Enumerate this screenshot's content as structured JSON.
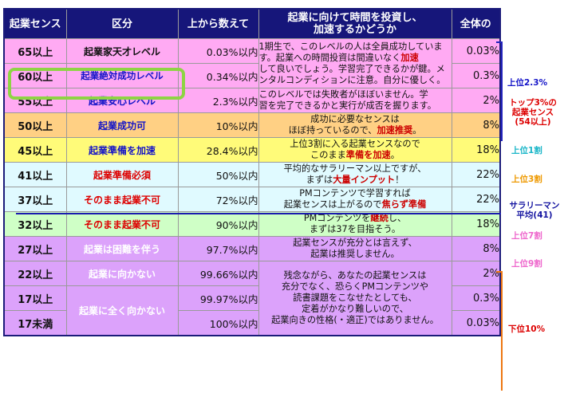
{
  "headers": {
    "score": "起業センス",
    "category": "区分",
    "count": "上から数えて",
    "desc_line1": "起業に向けて時間を投資し、",
    "desc_line2": "加速するかどうか",
    "whole": "全体の"
  },
  "rows": [
    {
      "score": "65以上",
      "category": "起業家天才レベル",
      "count": "0.03%以内",
      "whole": "0.03%"
    },
    {
      "score": "60以上",
      "category": "起業絶対成功レベル",
      "count": "0.34%以内",
      "whole": "0.3%"
    },
    {
      "score": "55以上",
      "category": "起業安心レベル",
      "count": "2.3%以内",
      "whole": "2%"
    },
    {
      "score": "50以上",
      "category": "起業成功可",
      "count": "10%以内",
      "whole": "8%"
    },
    {
      "score": "45以上",
      "category": "起業準備を加速",
      "count": "28.4%以内",
      "whole": "18%"
    },
    {
      "score": "41以上",
      "category": "起業準備必須",
      "count": "50%以内",
      "whole": "22%"
    },
    {
      "score": "37以上",
      "category": "そのまま起業不可",
      "count": "72%以内",
      "whole": "22%"
    },
    {
      "score": "32以上",
      "category": "そのまま起業不可",
      "count": "90%以内",
      "whole": "18%"
    },
    {
      "score": "27以上",
      "category": "起業は困難を伴う",
      "count": "97.7%以内",
      "whole": "8%"
    },
    {
      "score": "22以上",
      "category": "起業に向かない",
      "count": "99.66%以内",
      "whole": "2%"
    },
    {
      "score": "17以上",
      "category": "起業に全く向かない",
      "count": "99.97%以内",
      "whole": "0.3%"
    },
    {
      "score": "17未満",
      "category": "",
      "count": "100%以内",
      "whole": "0.03%"
    }
  ],
  "desc": {
    "top": {
      "l1": "1期生で、このレベルの人は全員成功していま",
      "l2a": "す。起業への時間投資は間違いなく",
      "l2b": "加速",
      "l3": "して良いでしょう。学習完了できるかが鍵。メ",
      "l4": "ンタルコンディションに注意。自分に優しく。"
    },
    "r55": {
      "l1": "このレベルでは失敗者がほぼいません。学",
      "l2": "習を完了できるかと実行が成否を握ります。"
    },
    "r50": {
      "l1": "成功に必要なセンスは",
      "l2a": "ほぼ持っているので、",
      "l2b": "加速推奨",
      "l2c": "。"
    },
    "r45": {
      "l1": "上位3割に入る起業センスなので",
      "l2a": "このまま",
      "l2b": "準備を加速",
      "l2c": "。"
    },
    "r41": {
      "l1": "平均的なサラリーマン以上ですが、",
      "l2a": "まずは",
      "l2b": "大量インプット",
      "l2c": "！"
    },
    "r37": {
      "l1": "PMコンテンツで学習すれば",
      "l2a": "起業センスは上がるので",
      "l2b": "焦らず準備"
    },
    "r32": {
      "l1a": "PMコンテンツを",
      "l1b": "継続",
      "l1c": "し、",
      "l2": "まずは37を目指そう。"
    },
    "r27": {
      "l1": "起業センスが充分とは言えず、",
      "l2": "起業は推奨しません。"
    },
    "low": {
      "l1": "残念ながら、あなたの起業センスは",
      "l2": "充分でなく、恐らくPMコンテンツや",
      "l3": "読書課題をこなせたとしても、",
      "l4": "定着がかなり難しいので、",
      "l5": "起業向きの性格(・適正)ではありません。"
    }
  },
  "side": {
    "top23": "上位2.3%",
    "top3_l1": "トップ3%の",
    "top3_l2": "起業センス",
    "top3_l3": "(54以上)",
    "top1": "上位1割",
    "top3": "上位3割",
    "avg_l1": "サラリーマン",
    "avg_l2": "平均(41)",
    "top7": "上位7割",
    "top9": "上位9割",
    "bottom10": "下位10%"
  },
  "colors": {
    "header_bg": "#16167a",
    "pink": "#ffaaf3",
    "orange": "#ffd084",
    "yellow": "#fffb79",
    "cyan": "#e0faff",
    "green": "#cfffc6",
    "purple": "#dca2fb",
    "highlight": "#8ed444"
  }
}
